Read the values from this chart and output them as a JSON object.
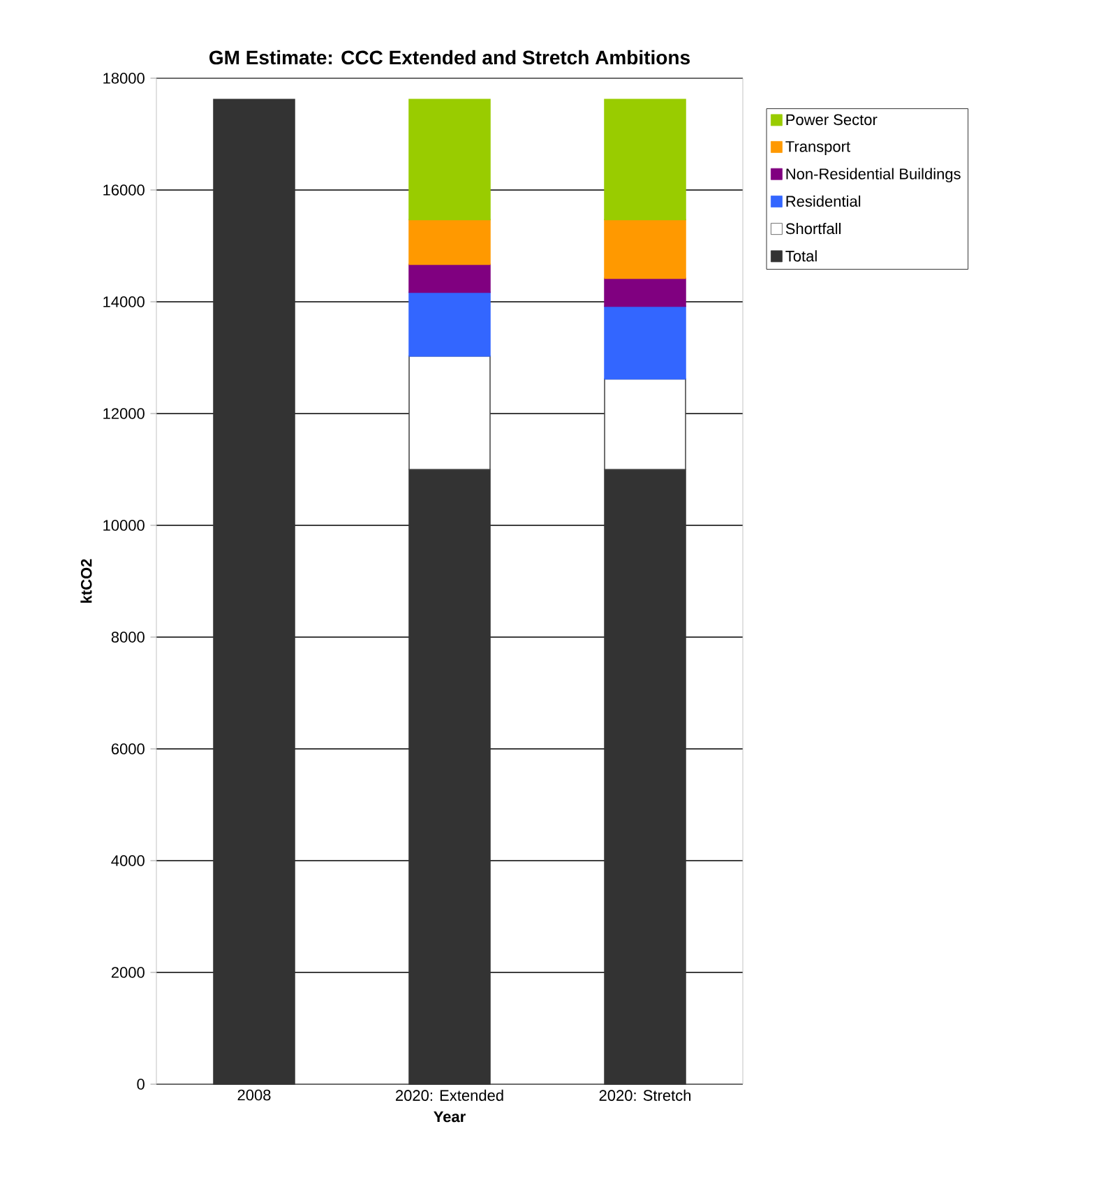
{
  "chart_data": {
    "type": "bar",
    "stacked": true,
    "title": "GM Estimate: CCC Extended and Stretch Ambitions",
    "xlabel": "Year",
    "ylabel": "ktCO2",
    "categories": [
      "2008",
      "2020: Extended",
      "2020: Stretch"
    ],
    "series": [
      {
        "name": "Total",
        "color": "#333333",
        "values": [
          17620,
          11000,
          11000
        ]
      },
      {
        "name": "Shortfall",
        "color": "#ffffff",
        "values": [
          null,
          2030,
          1620
        ]
      },
      {
        "name": "Residential",
        "color": "#3366ff",
        "values": [
          null,
          1140,
          1300
        ]
      },
      {
        "name": "Non-Residential Buildings",
        "color": "#800080",
        "values": [
          null,
          500,
          500
        ]
      },
      {
        "name": "Transport",
        "color": "#ff9900",
        "values": [
          null,
          800,
          1050
        ]
      },
      {
        "name": "Power Sector",
        "color": "#99cc00",
        "values": [
          null,
          2150,
          2150
        ]
      }
    ],
    "ylim": [
      0,
      18000
    ],
    "yticks": [
      0,
      2000,
      4000,
      6000,
      8000,
      10000,
      12000,
      14000,
      16000,
      18000
    ],
    "grid": "y",
    "legend": "right"
  }
}
